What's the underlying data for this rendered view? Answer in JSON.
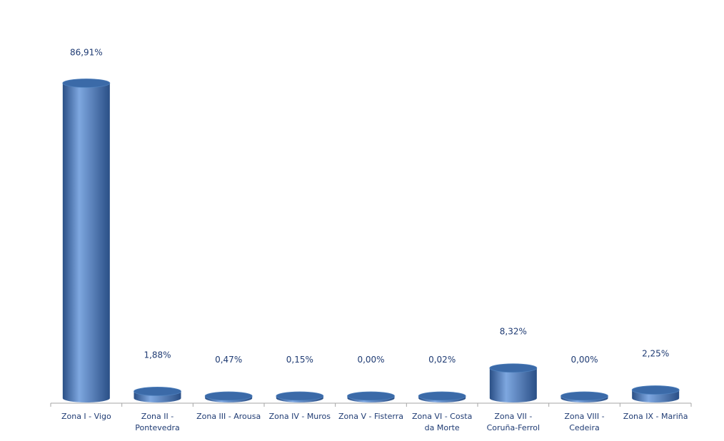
{
  "chart_data": {
    "type": "bar",
    "style": "3d-cylinder",
    "categories": [
      [
        "Zona I - Vigo"
      ],
      [
        "Zona II -",
        "Pontevedra"
      ],
      [
        "Zona III - Arousa"
      ],
      [
        "Zona IV - Muros"
      ],
      [
        "Zona V - Fisterra"
      ],
      [
        "Zona VI - Costa",
        "da Morte"
      ],
      [
        "Zona VII -",
        "Coruña-Ferrol"
      ],
      [
        "Zona VIII -",
        "Cedeira"
      ],
      [
        "Zona IX - Mariña"
      ]
    ],
    "values": [
      86.91,
      1.88,
      0.47,
      0.15,
      0.0,
      0.02,
      8.32,
      0.0,
      2.25
    ],
    "data_labels": [
      "86,91%",
      "1,88%",
      "0,47%",
      "0,15%",
      "0,00%",
      "0,02%",
      "8,32%",
      "0,00%",
      "2,25%"
    ],
    "ylim": [
      0,
      100
    ],
    "grid": false,
    "legend": "none",
    "colors": {
      "bar_light": "#7ea7e0",
      "bar_mid": "#4f81bd",
      "bar_dark": "#2a4f86",
      "bar_top": "#3b6aa8",
      "axis": "#a6a6a6",
      "label_text": "#1f3b73"
    }
  }
}
